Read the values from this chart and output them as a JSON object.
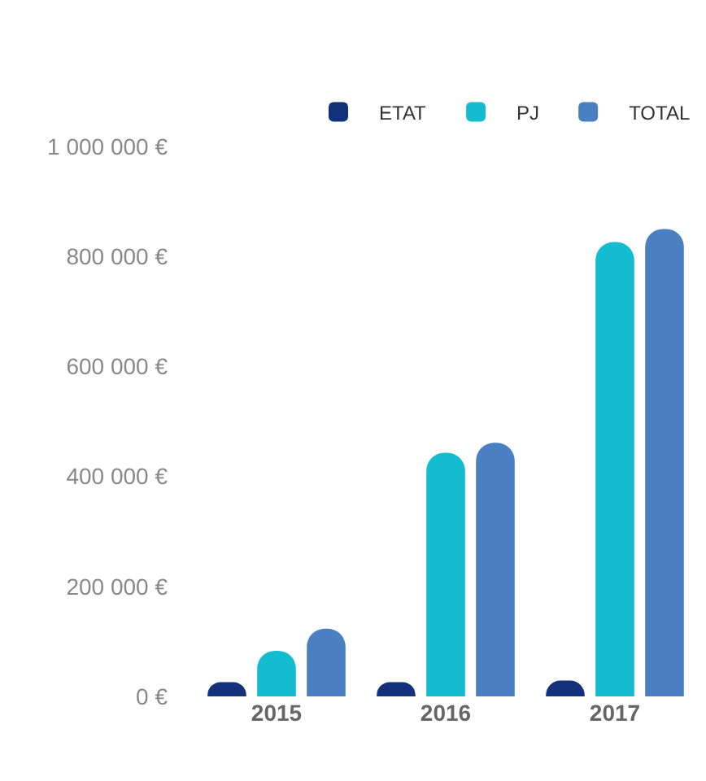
{
  "chart_data": {
    "type": "bar",
    "categories": [
      "2015",
      "2016",
      "2017"
    ],
    "series": [
      {
        "name": "ETAT",
        "color": "#13307a",
        "values": [
          26000,
          26000,
          29000
        ]
      },
      {
        "name": "PJ",
        "color": "#13bccf",
        "values": [
          83000,
          443000,
          826000
        ]
      },
      {
        "name": "TOTAL",
        "color": "#4a80c2",
        "values": [
          123000,
          461000,
          850000
        ]
      }
    ],
    "ylim": [
      0,
      1000000
    ],
    "yticks": [
      {
        "value": 0,
        "label": "0 €"
      },
      {
        "value": 200000,
        "label": "200 000 €"
      },
      {
        "value": 400000,
        "label": "400 000 €"
      },
      {
        "value": 600000,
        "label": "600 000 €"
      },
      {
        "value": 800000,
        "label": "800 000 €"
      },
      {
        "value": 1000000,
        "label": "1 000 000 €"
      }
    ],
    "grid": false,
    "legend": "top"
  }
}
